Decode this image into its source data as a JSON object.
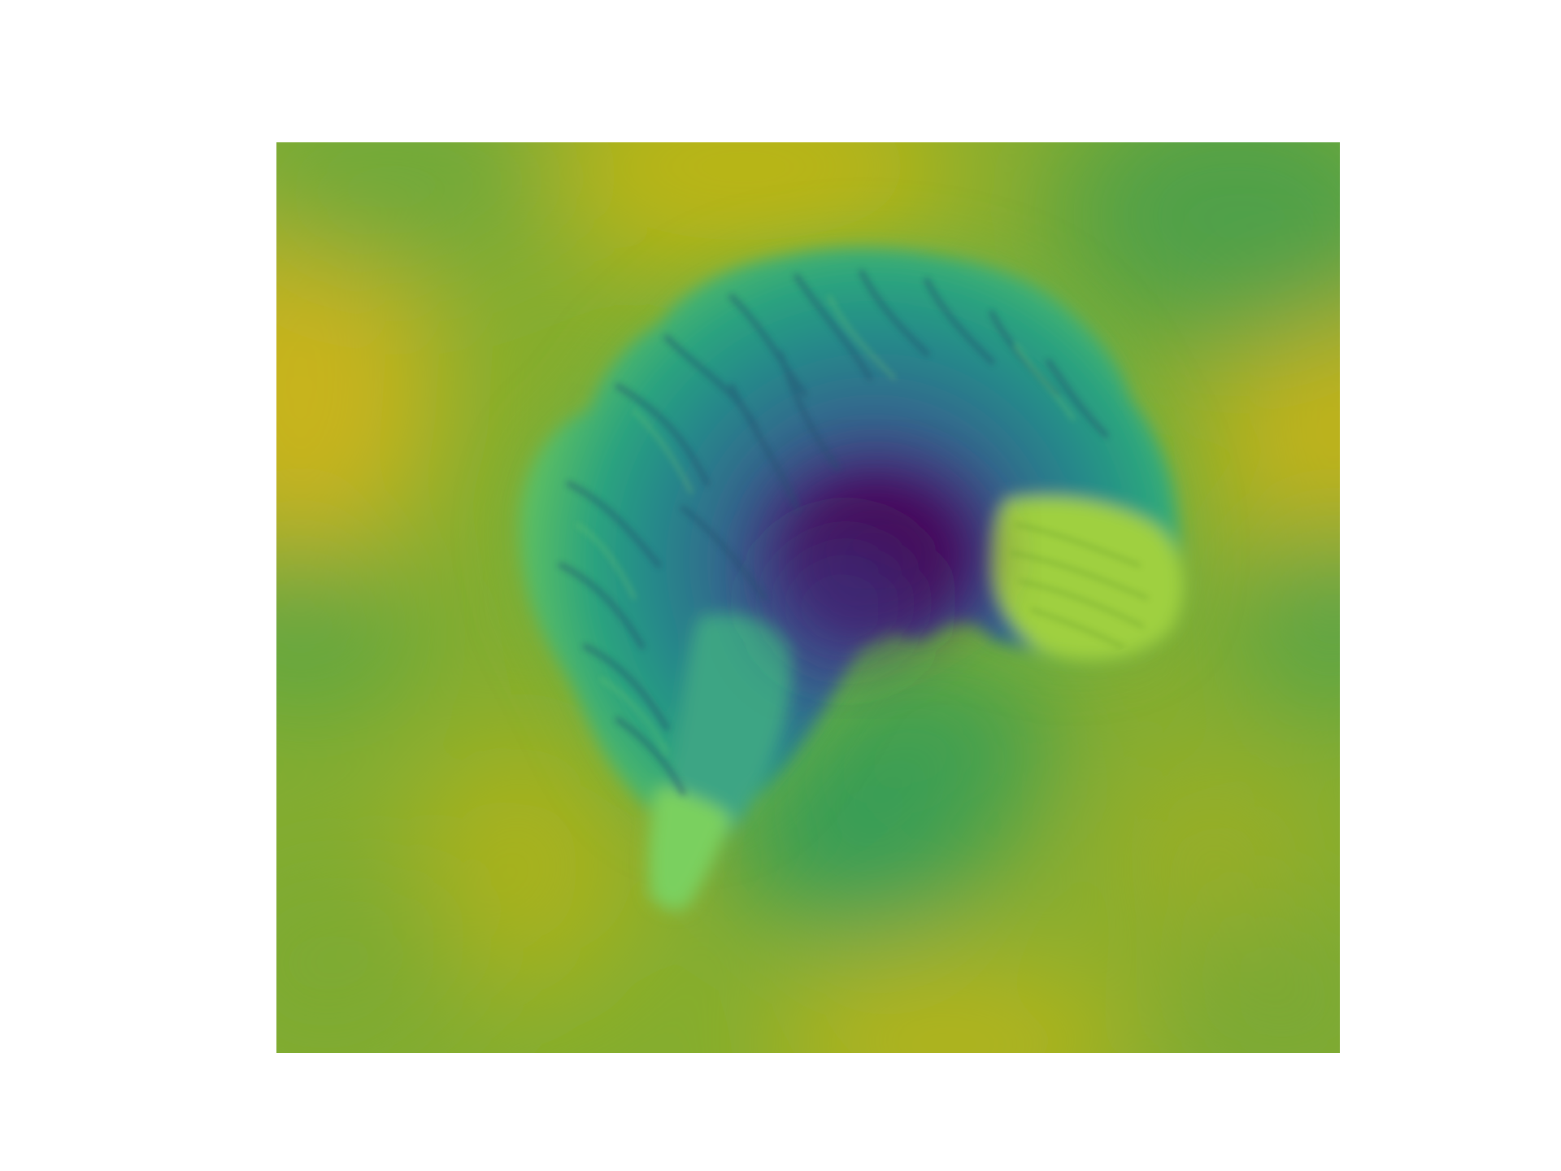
{
  "figure": {
    "kind": "sagittal brain attention heatmap",
    "colormap": [
      "#440154",
      "#3b528b",
      "#21918c",
      "#5ec962",
      "#b5b814"
    ],
    "background": "#ffffff"
  }
}
